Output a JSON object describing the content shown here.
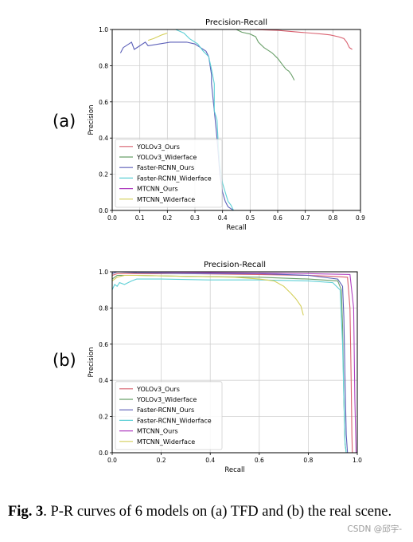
{
  "panel_labels": [
    "(a)",
    "(b)"
  ],
  "caption": {
    "fig_label": "Fig. 3",
    "text": ". P-R curves of 6 models on (a) TFD and (b) the real scene."
  },
  "watermark": "CSDN @邱宇-",
  "colors": {
    "YOLOv3_Ours": "#d9606f",
    "YOLOv3_Widerface": "#6aa06a",
    "Faster-RCNN_Ours": "#5b5fb8",
    "Faster-RCNN_Widerface": "#5fd0d6",
    "MTCNN_Ours": "#b040c0",
    "MTCNN_Widerface": "#d4cf5a"
  },
  "chart_data": [
    {
      "type": "line",
      "title": "Precision-Recall",
      "xlabel": "Recall",
      "ylabel": "Precision",
      "xlim": [
        0,
        0.9
      ],
      "ylim": [
        0,
        1.0
      ],
      "xticks": [
        "0.0",
        "0.1",
        "0.2",
        "0.3",
        "0.4",
        "0.5",
        "0.6",
        "0.7",
        "0.8",
        "0.9"
      ],
      "yticks": [
        "0.0",
        "0.2",
        "0.4",
        "0.6",
        "0.8",
        "1.0"
      ],
      "grid": true,
      "legend_position": "lower-left",
      "series": [
        {
          "name": "YOLOv3_Ours",
          "x": [
            0.0,
            0.3,
            0.5,
            0.6,
            0.68,
            0.72,
            0.76,
            0.79,
            0.82,
            0.84,
            0.85,
            0.86,
            0.87
          ],
          "y": [
            1.0,
            1.0,
            1.0,
            0.995,
            0.985,
            0.98,
            0.975,
            0.97,
            0.96,
            0.95,
            0.93,
            0.9,
            0.89
          ]
        },
        {
          "name": "YOLOv3_Widerface",
          "x": [
            0.0,
            0.45,
            0.47,
            0.5,
            0.52,
            0.53,
            0.55,
            0.57,
            0.58,
            0.6,
            0.62,
            0.63,
            0.64,
            0.65,
            0.66
          ],
          "y": [
            1.0,
            1.0,
            0.985,
            0.975,
            0.96,
            0.93,
            0.9,
            0.88,
            0.87,
            0.84,
            0.8,
            0.78,
            0.77,
            0.75,
            0.72
          ]
        },
        {
          "name": "Faster-RCNN_Ours",
          "x": [
            0.03,
            0.04,
            0.07,
            0.08,
            0.12,
            0.13,
            0.21,
            0.27,
            0.3,
            0.32,
            0.34,
            0.35,
            0.36,
            0.36,
            0.37,
            0.38,
            0.385,
            0.39,
            0.4,
            0.41,
            0.42,
            0.43,
            0.44,
            0.5,
            0.6
          ],
          "y": [
            0.87,
            0.9,
            0.93,
            0.89,
            0.93,
            0.91,
            0.93,
            0.93,
            0.92,
            0.9,
            0.88,
            0.85,
            0.75,
            0.7,
            0.55,
            0.4,
            0.3,
            0.2,
            0.1,
            0.05,
            0.02,
            0.01,
            0.0,
            0.0,
            0.0
          ]
        },
        {
          "name": "Faster-RCNN_Widerface",
          "x": [
            0.0,
            0.23,
            0.26,
            0.28,
            0.31,
            0.33,
            0.35,
            0.36,
            0.37,
            0.37,
            0.38,
            0.385,
            0.39,
            0.4,
            0.41,
            0.42,
            0.43,
            0.44
          ],
          "y": [
            1.0,
            1.0,
            0.98,
            0.95,
            0.92,
            0.88,
            0.85,
            0.78,
            0.7,
            0.55,
            0.5,
            0.35,
            0.25,
            0.15,
            0.1,
            0.05,
            0.03,
            0.0
          ]
        },
        {
          "name": "MTCNN_Ours",
          "x": [
            0.0,
            0.2
          ],
          "y": [
            1.0,
            1.0
          ]
        },
        {
          "name": "MTCNN_Widerface",
          "x": [
            0.13,
            0.15,
            0.18,
            0.2
          ],
          "y": [
            0.94,
            0.95,
            0.97,
            0.98
          ]
        }
      ]
    },
    {
      "type": "line",
      "title": "Precision-Recall",
      "xlabel": "Recall",
      "ylabel": "Precision",
      "xlim": [
        0,
        1.0
      ],
      "ylim": [
        0,
        1.0
      ],
      "xticks": [
        "0.0",
        "0.2",
        "0.4",
        "0.6",
        "0.8",
        "1.0"
      ],
      "yticks": [
        "0.0",
        "0.2",
        "0.4",
        "0.6",
        "0.8",
        "1.0"
      ],
      "grid": true,
      "legend_position": "lower-left",
      "series": [
        {
          "name": "YOLOv3_Ours",
          "x": [
            0.0,
            0.02,
            0.1,
            0.3,
            0.6,
            0.8,
            0.9,
            0.96,
            0.97,
            0.975,
            0.978,
            0.98
          ],
          "y": [
            0.98,
            0.99,
            0.99,
            0.99,
            0.985,
            0.98,
            0.975,
            0.97,
            0.8,
            0.4,
            0.1,
            0.0
          ]
        },
        {
          "name": "YOLOv3_Widerface",
          "x": [
            0.0,
            0.02,
            0.1,
            0.3,
            0.6,
            0.8,
            0.92,
            0.935,
            0.94,
            0.945,
            0.95,
            0.955
          ],
          "y": [
            0.96,
            0.98,
            0.98,
            0.975,
            0.97,
            0.96,
            0.95,
            0.9,
            0.7,
            0.3,
            0.05,
            0.0
          ]
        },
        {
          "name": "Faster-RCNN_Ours",
          "x": [
            0.0,
            0.02,
            0.1,
            0.3,
            0.6,
            0.8,
            0.92,
            0.94,
            0.945,
            0.95,
            0.955,
            0.96
          ],
          "y": [
            0.99,
            1.0,
            0.995,
            0.99,
            0.99,
            0.98,
            0.96,
            0.92,
            0.75,
            0.4,
            0.1,
            0.0
          ]
        },
        {
          "name": "Faster-RCNN_Widerface",
          "x": [
            0.0,
            0.01,
            0.02,
            0.03,
            0.05,
            0.08,
            0.1,
            0.2,
            0.4,
            0.6,
            0.8,
            0.9,
            0.93,
            0.94,
            0.945,
            0.95,
            0.955
          ],
          "y": [
            0.9,
            0.93,
            0.92,
            0.94,
            0.93,
            0.95,
            0.96,
            0.96,
            0.955,
            0.955,
            0.95,
            0.94,
            0.9,
            0.6,
            0.3,
            0.05,
            0.0
          ]
        },
        {
          "name": "MTCNN_Ours",
          "x": [
            0.0,
            0.1,
            0.4,
            0.8,
            0.97,
            0.985,
            0.99,
            0.995
          ],
          "y": [
            1.0,
            1.0,
            0.995,
            0.99,
            0.985,
            0.8,
            0.3,
            0.0
          ]
        },
        {
          "name": "MTCNN_Widerface",
          "x": [
            0.0,
            0.02,
            0.05,
            0.1,
            0.3,
            0.5,
            0.6,
            0.66,
            0.7,
            0.73,
            0.75,
            0.77,
            0.78
          ],
          "y": [
            0.95,
            0.97,
            0.98,
            0.98,
            0.975,
            0.97,
            0.96,
            0.95,
            0.92,
            0.88,
            0.85,
            0.81,
            0.76
          ]
        }
      ]
    }
  ]
}
